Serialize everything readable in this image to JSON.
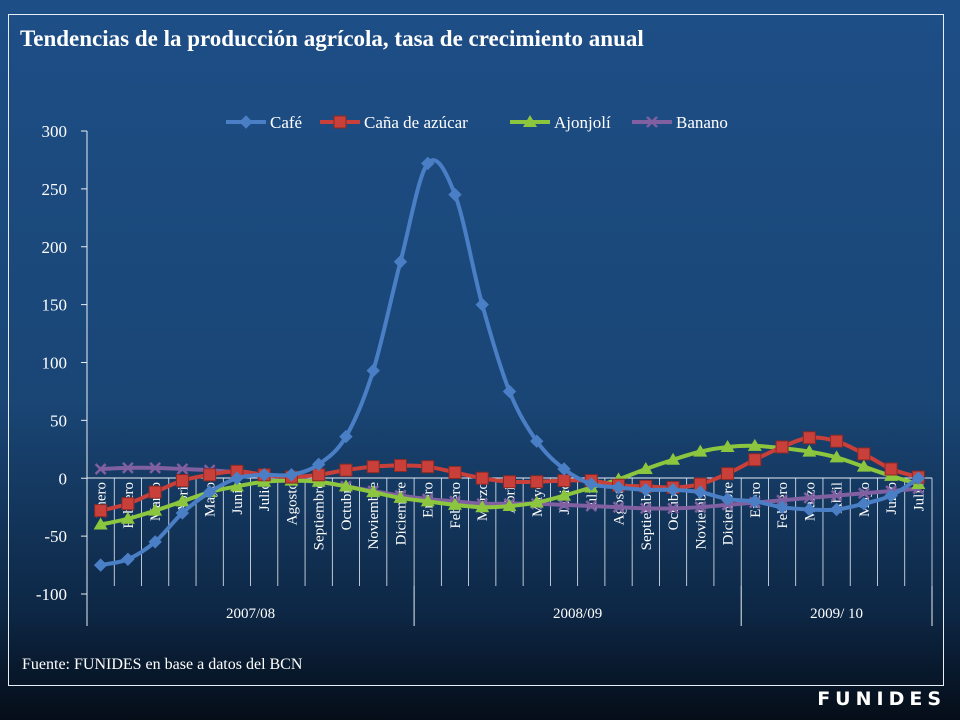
{
  "chart_data": {
    "type": "line",
    "title": "Tendencias de la producción agrícola, tasa de crecimiento anual",
    "ylim": [
      -100,
      300
    ],
    "yticks": [
      300,
      250,
      200,
      150,
      100,
      50,
      0,
      -50,
      -100
    ],
    "ytick_labels": [
      "300",
      "250",
      "200",
      "150",
      "100",
      "50",
      "0",
      "-50",
      "-100"
    ],
    "categories": [
      "Enero",
      "Febrero",
      "Marzo",
      "Abril",
      "Mayo",
      "Junio",
      "Julio",
      "Agosto",
      "Septiembre",
      "Octubre",
      "Noviembre",
      "Diciembre",
      "Enero",
      "Febrero",
      "Marzo",
      "Abril",
      "Mayo",
      "Junio",
      "Julio",
      "Agosto",
      "Septiembre",
      "Octubre",
      "Noviembre",
      "Diciembre",
      "Enero",
      "Febrero",
      "Marzo",
      "Abril",
      "Mayo",
      "Junio",
      "Julio"
    ],
    "groups": [
      {
        "label": "2007/08",
        "count": 12
      },
      {
        "label": "2008/09",
        "count": 12
      },
      {
        "label": "2009/ 10",
        "count": 7
      }
    ],
    "legend_position": "top",
    "grid": false,
    "series": [
      {
        "name": "Café",
        "color": "#4a7fc6",
        "marker": "diamond",
        "values": [
          -75,
          -70,
          -55,
          -30,
          -12,
          0,
          3,
          3,
          12,
          36,
          93,
          187,
          272,
          245,
          150,
          75,
          32,
          8,
          -5,
          -8,
          -10,
          -10,
          -12,
          -18,
          -20,
          -25,
          -27,
          -27,
          -22,
          -15,
          0
        ]
      },
      {
        "name": "Caña de azúcar",
        "color": "#c9403a",
        "marker": "square",
        "values": [
          -28,
          -22,
          -12,
          -2,
          3,
          6,
          3,
          1,
          3,
          7,
          10,
          11,
          10,
          5,
          0,
          -3,
          -3,
          -2,
          -2,
          -6,
          -7,
          -8,
          -5,
          4,
          16,
          27,
          35,
          32,
          21,
          8,
          1
        ]
      },
      {
        "name": "Ajonjolí",
        "color": "#8cc63f",
        "marker": "triangle",
        "values": [
          -40,
          -35,
          -28,
          -20,
          -12,
          -7,
          -3,
          -2,
          -3,
          -7,
          -12,
          -17,
          -20,
          -23,
          -25,
          -24,
          -21,
          -15,
          -8,
          -1,
          8,
          16,
          23,
          27,
          28,
          26,
          23,
          18,
          10,
          2,
          -5
        ]
      },
      {
        "name": "Banano",
        "color": "#8060a0",
        "marker": "x",
        "values": [
          8,
          9,
          9,
          8,
          7,
          5,
          3,
          0,
          -3,
          -7,
          -11,
          -15,
          -18,
          -20,
          -22,
          -22,
          -22,
          -23,
          -24,
          -25,
          -26,
          -26,
          -25,
          -23,
          -21,
          -19,
          -17,
          -15,
          -13,
          -11,
          -9
        ]
      }
    ]
  },
  "source_note": "Fuente: FUNIDES en base a datos del BCN",
  "brand": "FUNIDES"
}
